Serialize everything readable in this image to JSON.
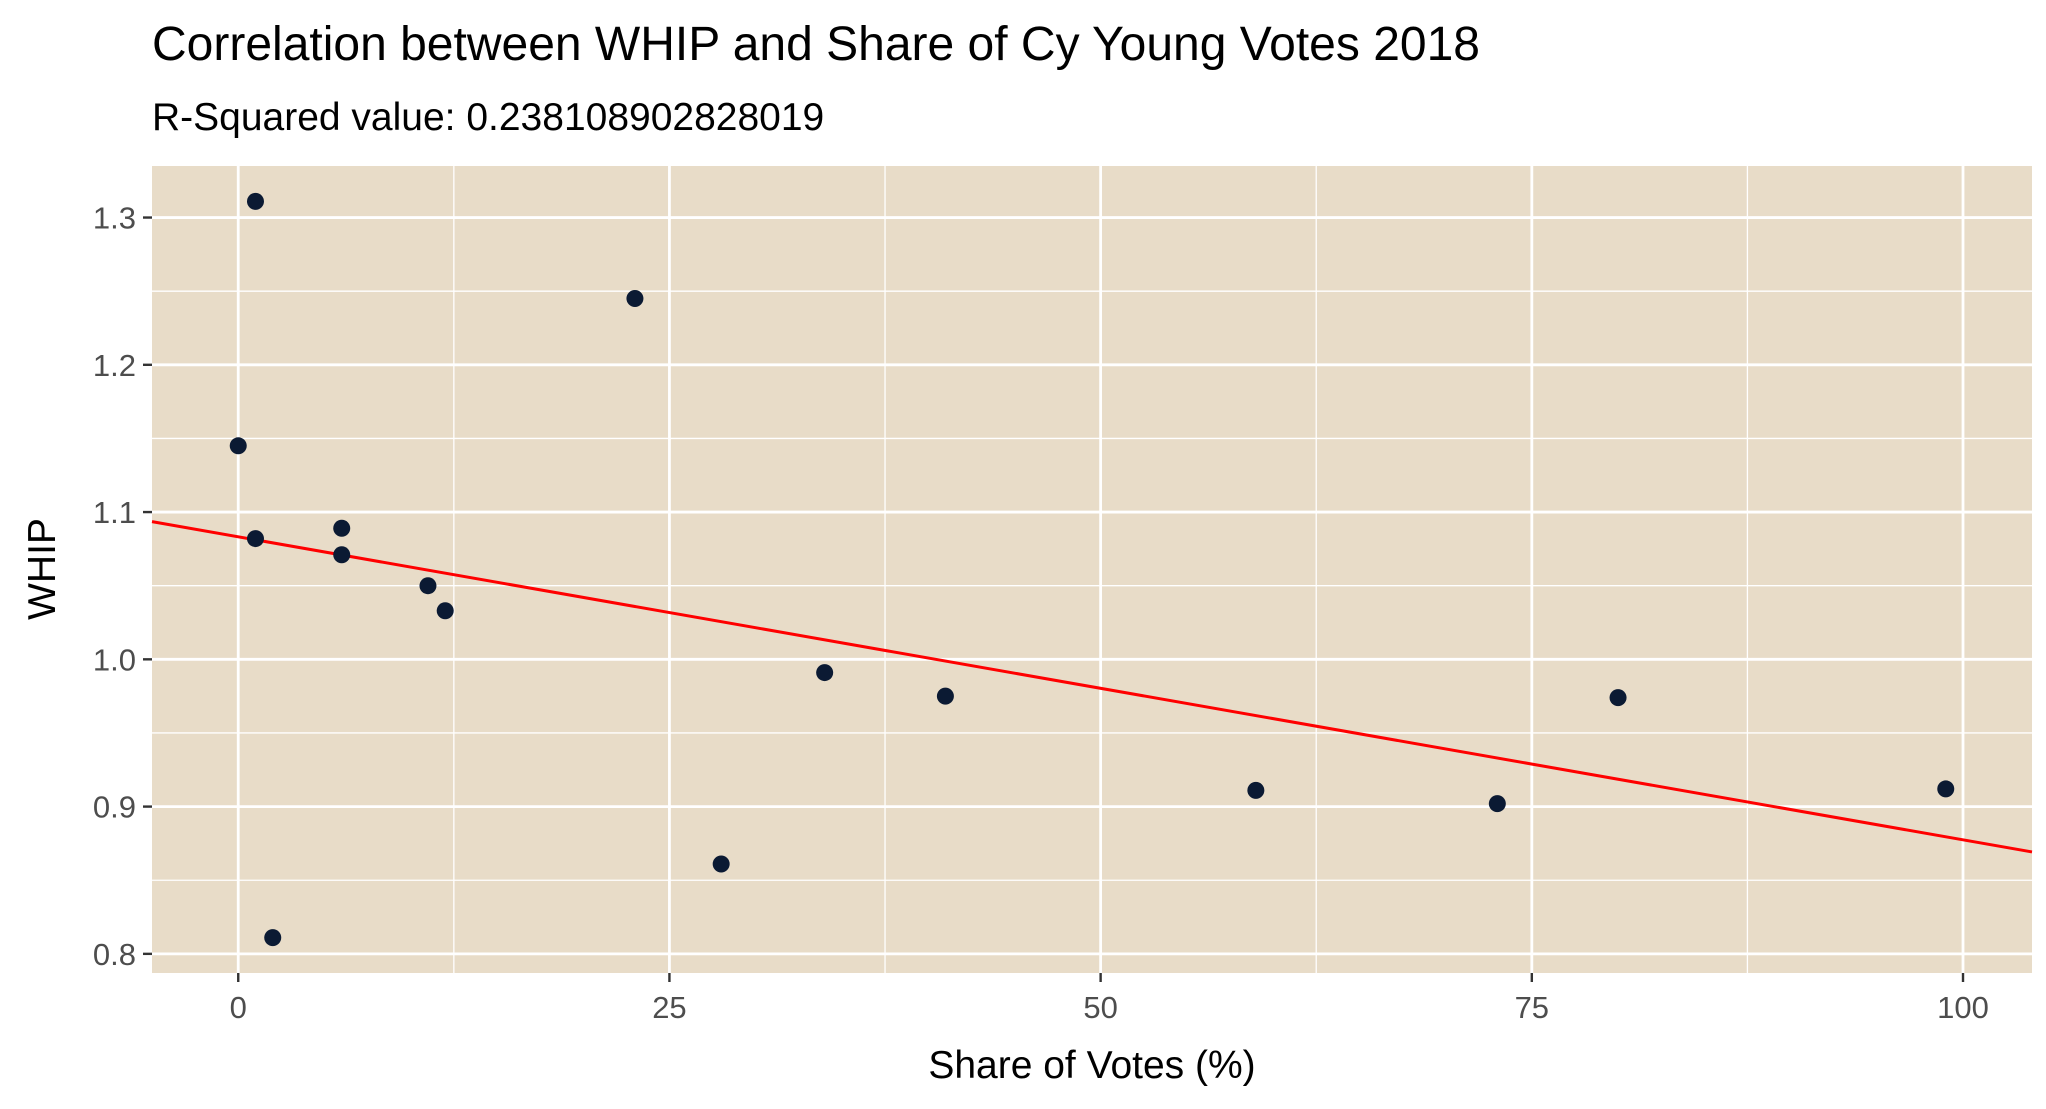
{
  "chart_data": {
    "type": "scatter",
    "title": "Correlation between WHIP and Share of Cy Young Votes 2018",
    "subtitle": "R-Squared value: 0.238108902828019",
    "xlabel": "Share of Votes (%)",
    "ylabel": "WHIP",
    "xlim": [
      -5,
      104
    ],
    "ylim": [
      0.787,
      1.335
    ],
    "x_ticks": [
      0,
      25,
      50,
      75,
      100
    ],
    "x_tick_labels": [
      "0",
      "25",
      "50",
      "75",
      "100"
    ],
    "y_ticks": [
      0.8,
      0.9,
      1.0,
      1.1,
      1.2,
      1.3
    ],
    "y_tick_labels": [
      "0.8",
      "0.9",
      "1.0",
      "1.1",
      "1.2",
      "1.3"
    ],
    "grid": true,
    "points": [
      {
        "x": 1,
        "y": 1.311
      },
      {
        "x": 23,
        "y": 1.245
      },
      {
        "x": 0,
        "y": 1.145
      },
      {
        "x": 6,
        "y": 1.089
      },
      {
        "x": 1,
        "y": 1.082
      },
      {
        "x": 6,
        "y": 1.071
      },
      {
        "x": 11,
        "y": 1.05
      },
      {
        "x": 12,
        "y": 1.033
      },
      {
        "x": 34,
        "y": 0.991
      },
      {
        "x": 41,
        "y": 0.975
      },
      {
        "x": 80,
        "y": 0.974
      },
      {
        "x": 59,
        "y": 0.911
      },
      {
        "x": 99,
        "y": 0.912
      },
      {
        "x": 73,
        "y": 0.902
      },
      {
        "x": 28,
        "y": 0.861
      },
      {
        "x": 2,
        "y": 0.811
      }
    ],
    "trend_line": {
      "x": [
        -5,
        104
      ],
      "y": [
        1.0935,
        0.8692
      ]
    },
    "colors": {
      "panel_background": "#e8dcc8",
      "grid": "#ffffff",
      "point": "#0b1a33",
      "trend_line": "#ff0000",
      "tick_label": "#4d4d4d",
      "tick_mark": "#333333"
    }
  }
}
